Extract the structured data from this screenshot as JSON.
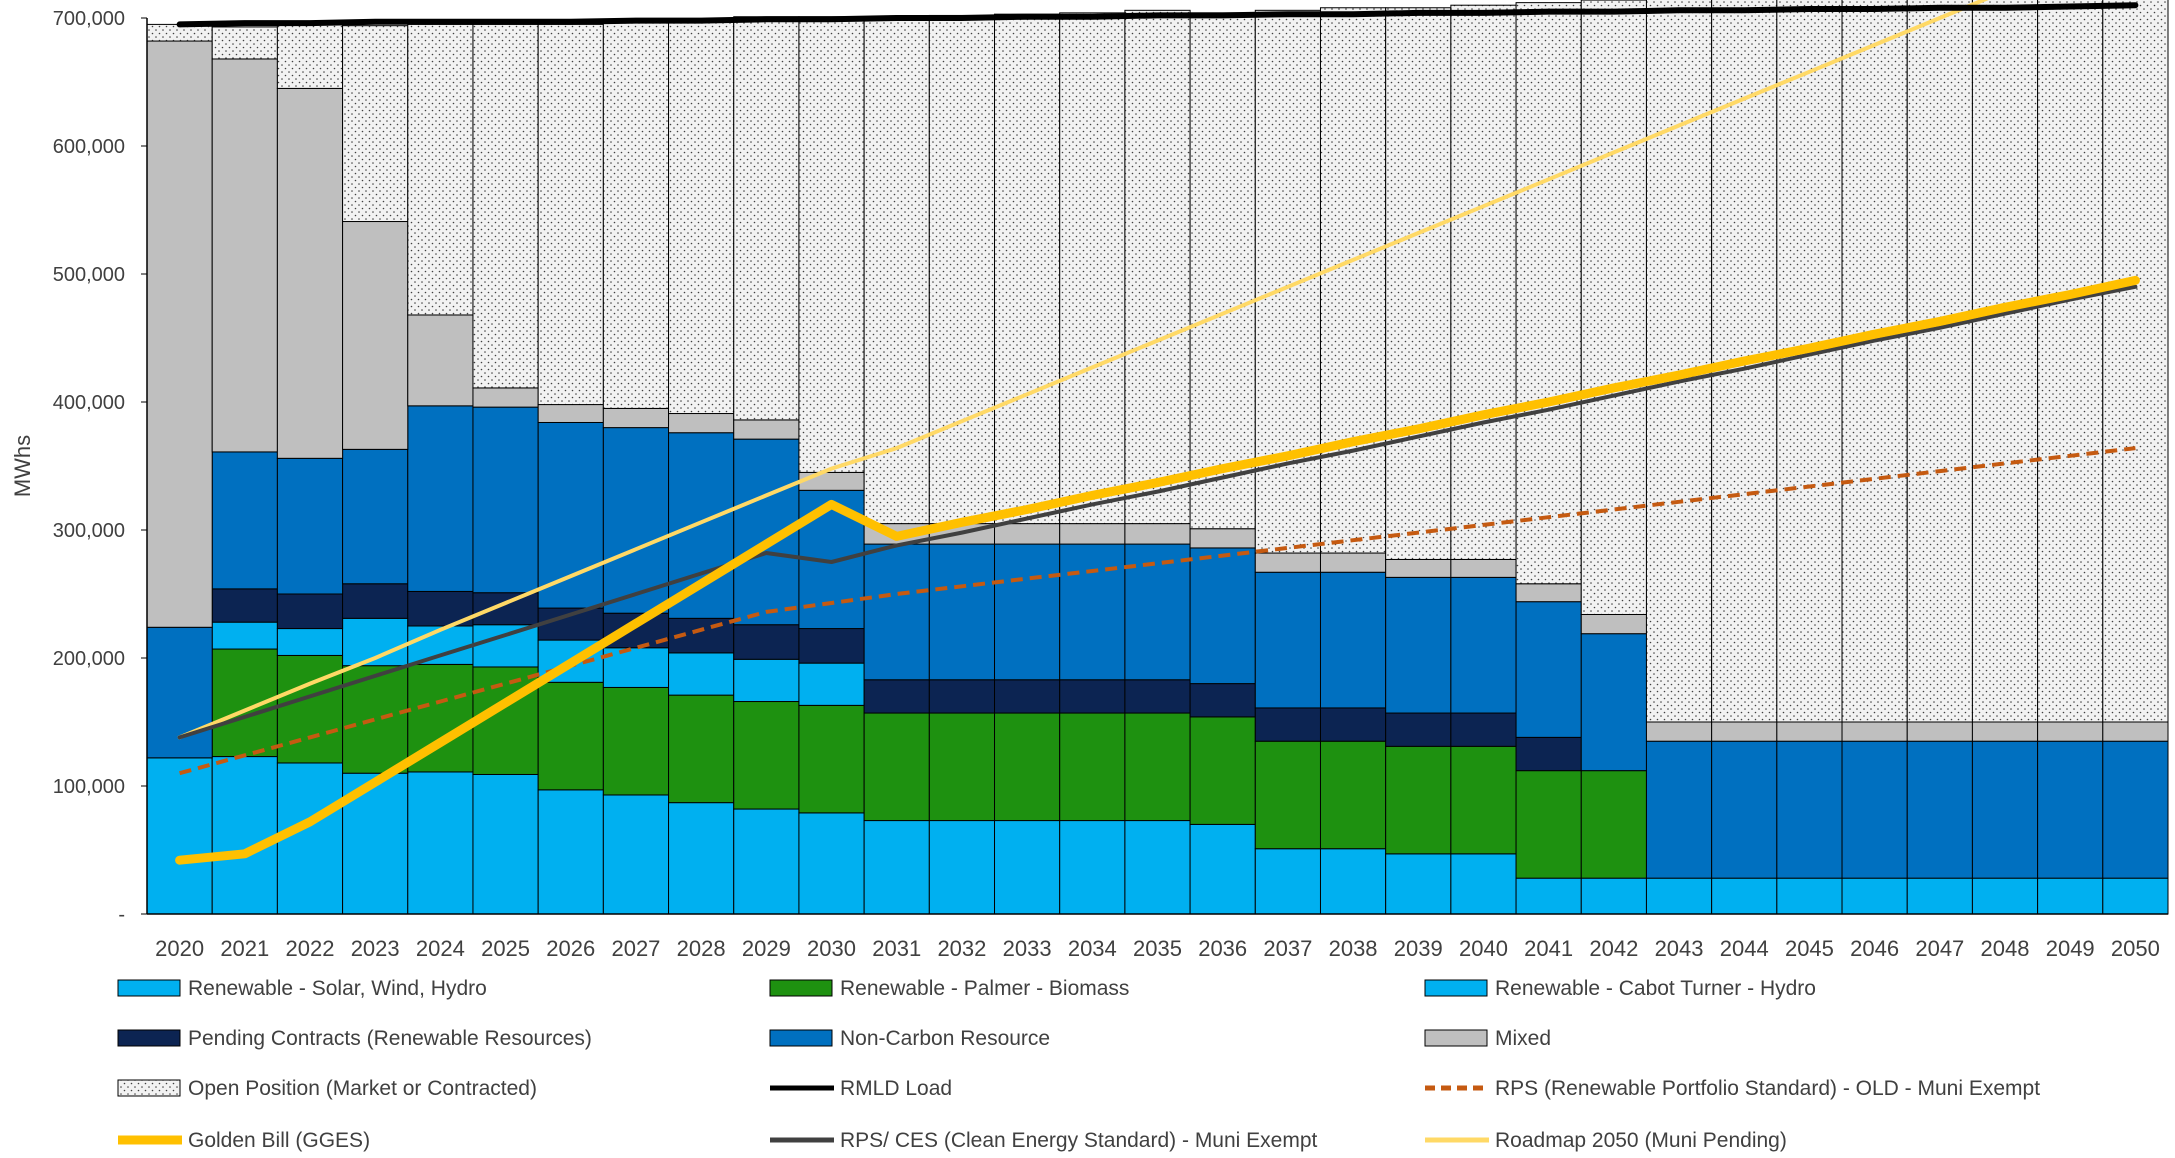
{
  "chart_data": {
    "type": "bar",
    "stacked": true,
    "ylabel": "MWhs",
    "ylim": [
      0,
      700000
    ],
    "yticks": [
      0,
      100000,
      200000,
      300000,
      400000,
      500000,
      600000,
      700000
    ],
    "ytick_labels": [
      "-",
      "100,000",
      "200,000",
      "300,000",
      "400,000",
      "500,000",
      "600,000",
      "700,000"
    ],
    "grid": false,
    "legend_position": "bottom",
    "categories": [
      "2020",
      "2021",
      "2022",
      "2023",
      "2024",
      "2025",
      "2026",
      "2027",
      "2028",
      "2029",
      "2030",
      "2031",
      "2032",
      "2033",
      "2034",
      "2035",
      "2036",
      "2037",
      "2038",
      "2039",
      "2040",
      "2041",
      "2042",
      "2043",
      "2044",
      "2045",
      "2046",
      "2047",
      "2048",
      "2049",
      "2050"
    ],
    "bar_series": [
      {
        "name": "Renewable - Solar, Wind, Hydro",
        "color": "#00B0F0",
        "pattern": "solid",
        "values": [
          122000,
          123000,
          118000,
          110000,
          111000,
          109000,
          97000,
          93000,
          87000,
          82000,
          79000,
          73000,
          73000,
          73000,
          73000,
          73000,
          70000,
          51000,
          51000,
          47000,
          47000,
          28000,
          28000,
          28000,
          28000,
          28000,
          28000,
          28000,
          28000,
          28000,
          28000
        ]
      },
      {
        "name": "Renewable - Palmer - Biomass",
        "color": "#1E9110",
        "pattern": "solid",
        "values": [
          0,
          84000,
          84000,
          84000,
          84000,
          84000,
          84000,
          84000,
          84000,
          84000,
          84000,
          84000,
          84000,
          84000,
          84000,
          84000,
          84000,
          84000,
          84000,
          84000,
          84000,
          84000,
          84000,
          0,
          0,
          0,
          0,
          0,
          0,
          0,
          0
        ]
      },
      {
        "name": "Renewable - Cabot Turner - Hydro",
        "color": "#00B0F0",
        "pattern": "solid",
        "values": [
          0,
          21000,
          21000,
          37000,
          30000,
          33000,
          33000,
          31000,
          33000,
          33000,
          33000,
          0,
          0,
          0,
          0,
          0,
          0,
          0,
          0,
          0,
          0,
          0,
          0,
          0,
          0,
          0,
          0,
          0,
          0,
          0,
          0
        ]
      },
      {
        "name": "Pending Contracts (Renewable Resources)",
        "color": "#0C2452",
        "pattern": "solid",
        "values": [
          0,
          26000,
          27000,
          27000,
          27000,
          25000,
          25000,
          27000,
          27000,
          27000,
          27000,
          26000,
          26000,
          26000,
          26000,
          26000,
          26000,
          26000,
          26000,
          26000,
          26000,
          26000,
          0,
          0,
          0,
          0,
          0,
          0,
          0,
          0,
          0
        ]
      },
      {
        "name": "Non-Carbon Resource",
        "color": "#0070C0",
        "pattern": "solid",
        "values": [
          102000,
          107000,
          106000,
          105000,
          145000,
          145000,
          145000,
          145000,
          145000,
          145000,
          108000,
          106000,
          106000,
          106000,
          106000,
          106000,
          106000,
          106000,
          106000,
          106000,
          106000,
          106000,
          107000,
          107000,
          107000,
          107000,
          107000,
          107000,
          107000,
          107000,
          107000
        ]
      },
      {
        "name": "Mixed",
        "color": "#BFBFBF",
        "pattern": "solid",
        "values": [
          458000,
          307000,
          289000,
          178000,
          71000,
          15000,
          14000,
          15000,
          15000,
          15000,
          14000,
          16000,
          16000,
          16000,
          16000,
          16000,
          15000,
          15000,
          15000,
          14000,
          14000,
          14000,
          15000,
          15000,
          15000,
          15000,
          15000,
          15000,
          15000,
          15000,
          15000
        ]
      },
      {
        "name": "Open Position (Market or Contracted)",
        "color": "#F2F2F2",
        "pattern": "dots",
        "values": [
          13000,
          25000,
          51000,
          153000,
          227000,
          284000,
          297000,
          302000,
          308000,
          315000,
          356000,
          396000,
          397000,
          398000,
          399000,
          401000,
          403000,
          424000,
          426000,
          431000,
          433000,
          454000,
          480000,
          565000,
          566000,
          567000,
          568000,
          569000,
          571000,
          572000,
          575000
        ]
      }
    ],
    "line_series": [
      {
        "name": "RMLD Load",
        "color": "#000000",
        "dash": "solid",
        "width": "thick",
        "values": [
          695000,
          696000,
          696000,
          697000,
          697000,
          697000,
          697000,
          698000,
          698000,
          699000,
          699000,
          700000,
          700000,
          701000,
          701000,
          702000,
          702000,
          703000,
          703000,
          704000,
          704000,
          705000,
          705000,
          706000,
          706000,
          707000,
          707000,
          708000,
          708000,
          709000,
          710000
        ]
      },
      {
        "name": "RPS (Renewable Portfolio Standard) - OLD - Muni Exempt",
        "color": "#C55A11",
        "dash": "dashed",
        "width": "medium",
        "values": [
          110000,
          124000,
          138000,
          152000,
          166000,
          180000,
          194000,
          208000,
          222000,
          236000,
          243000,
          250000,
          256000,
          262000,
          268000,
          274000,
          280000,
          286000,
          292000,
          298000,
          304000,
          310000,
          316000,
          322000,
          328000,
          334000,
          340000,
          346000,
          352000,
          358000,
          364000
        ]
      },
      {
        "name": "Golden Bill (GGES)",
        "color": "#FFC000",
        "dash": "solid",
        "width": "extra-thick",
        "values": [
          42000,
          47000,
          72000,
          103000,
          134000,
          165000,
          196000,
          227000,
          258000,
          289000,
          320000,
          295000,
          306000,
          316000,
          327000,
          337000,
          348000,
          358000,
          369000,
          379000,
          390000,
          400000,
          411000,
          421000,
          432000,
          442000,
          453000,
          463000,
          474000,
          484000,
          495000
        ]
      },
      {
        "name": "RPS/ CES (Clean Energy Standard) - Muni Exempt",
        "color": "#404040",
        "dash": "solid",
        "width": "medium",
        "values": [
          138000,
          154000,
          170000,
          186000,
          202000,
          218000,
          234000,
          250000,
          266000,
          282000,
          275000,
          288000,
          298000,
          309000,
          320000,
          330000,
          341000,
          352000,
          362000,
          373000,
          384000,
          394000,
          405000,
          416000,
          426000,
          437000,
          448000,
          458000,
          469000,
          480000,
          490000
        ]
      },
      {
        "name": "Roadmap 2050 (Muni Pending)",
        "color": "#FFD966",
        "dash": "solid",
        "width": "medium",
        "values": [
          138000,
          159000,
          180000,
          200000,
          222000,
          243000,
          264000,
          285000,
          306000,
          327000,
          348000,
          364000,
          385000,
          406000,
          427000,
          448000,
          469000,
          490000,
          511000,
          532000,
          553000,
          574000,
          595000,
          616000,
          637000,
          658000,
          679000,
          700000,
          721000,
          742000,
          763000
        ]
      }
    ],
    "legend": [
      {
        "label": "Renewable - Solar, Wind, Hydro",
        "kind": "bar",
        "color": "#00B0F0"
      },
      {
        "label": "Renewable - Palmer - Biomass",
        "kind": "bar",
        "color": "#1E9110"
      },
      {
        "label": "Renewable - Cabot Turner - Hydro",
        "kind": "bar",
        "color": "#00B0F0"
      },
      {
        "label": "Pending Contracts (Renewable Resources)",
        "kind": "bar",
        "color": "#0C2452"
      },
      {
        "label": "Non-Carbon Resource",
        "kind": "bar",
        "color": "#0070C0"
      },
      {
        "label": "Mixed",
        "kind": "bar",
        "color": "#BFBFBF"
      },
      {
        "label": "Open Position (Market or Contracted)",
        "kind": "dots",
        "color": "#F2F2F2"
      },
      {
        "label": "RMLD Load",
        "kind": "line",
        "color": "#000000",
        "dash": "solid"
      },
      {
        "label": "RPS (Renewable Portfolio Standard) - OLD - Muni Exempt",
        "kind": "line",
        "color": "#C55A11",
        "dash": "dashed"
      },
      {
        "label": "Golden Bill (GGES)",
        "kind": "line",
        "color": "#FFC000",
        "dash": "solid"
      },
      {
        "label": "RPS/ CES (Clean Energy Standard) - Muni Exempt",
        "kind": "line",
        "color": "#404040",
        "dash": "solid"
      },
      {
        "label": "Roadmap 2050 (Muni Pending)",
        "kind": "line",
        "color": "#FFD966",
        "dash": "solid"
      }
    ]
  }
}
